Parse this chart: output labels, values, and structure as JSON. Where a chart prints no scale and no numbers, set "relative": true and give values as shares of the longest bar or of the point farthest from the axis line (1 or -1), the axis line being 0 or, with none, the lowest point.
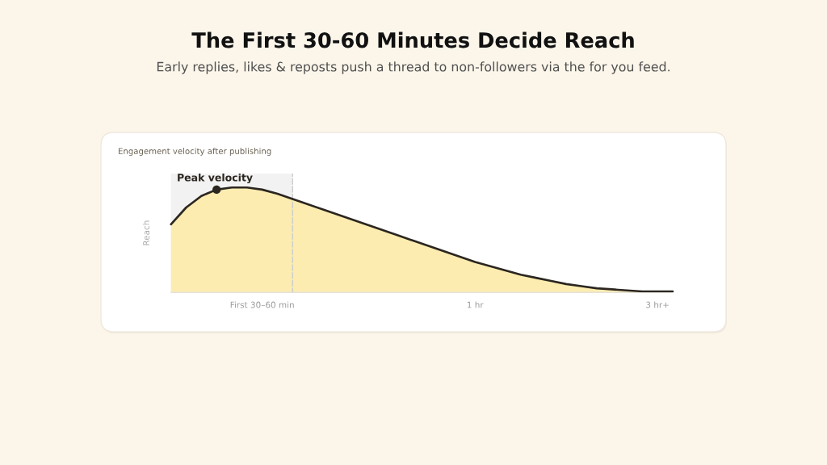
{
  "chart_data": {
    "type": "area",
    "title": "The First 30-60 Minutes Decide Reach",
    "subtitle": "Early replies, likes & reposts push a thread to non-followers via the for you feed.",
    "ylabel": "Reach",
    "relative": true,
    "tick_labels": "x",
    "categories": [
      null,
      null,
      null,
      null,
      null,
      null,
      "First 30–60 min",
      null,
      null,
      null,
      null,
      null,
      null,
      null,
      null,
      null,
      null,
      null,
      null,
      null,
      "1 hr",
      null,
      null,
      null,
      null,
      null,
      null,
      null,
      null,
      null,
      null,
      null,
      "3 hr+",
      null
    ],
    "series": [
      {
        "color": "#fcecb0",
        "values": [
          0.65,
          0.81,
          0.92,
          0.98,
          1.0,
          1.0,
          0.98,
          0.94,
          0.89,
          0.84,
          0.79,
          0.74,
          0.69,
          0.64,
          0.59,
          0.54,
          0.49,
          0.44,
          0.39,
          0.34,
          0.29,
          0.25,
          0.21,
          0.17,
          0.14,
          0.11,
          0.08,
          0.06,
          0.04,
          0.03,
          0.02,
          0.01,
          0.01,
          0.01
        ]
      },
      {
        "type": "scatter",
        "color": "#2b2620",
        "marker": "circle",
        "values": [
          null,
          null,
          null,
          0.98,
          null,
          null,
          null,
          null,
          null,
          null,
          null,
          null,
          null,
          null,
          null,
          null,
          null,
          null,
          null,
          null,
          null,
          null,
          null,
          null,
          null,
          null,
          null,
          null,
          null,
          null,
          null,
          null,
          null,
          null
        ]
      }
    ],
    "annotations": [
      "Engagement velocity after publishing",
      "Peak velocity"
    ],
    "line_style": "solid"
  }
}
